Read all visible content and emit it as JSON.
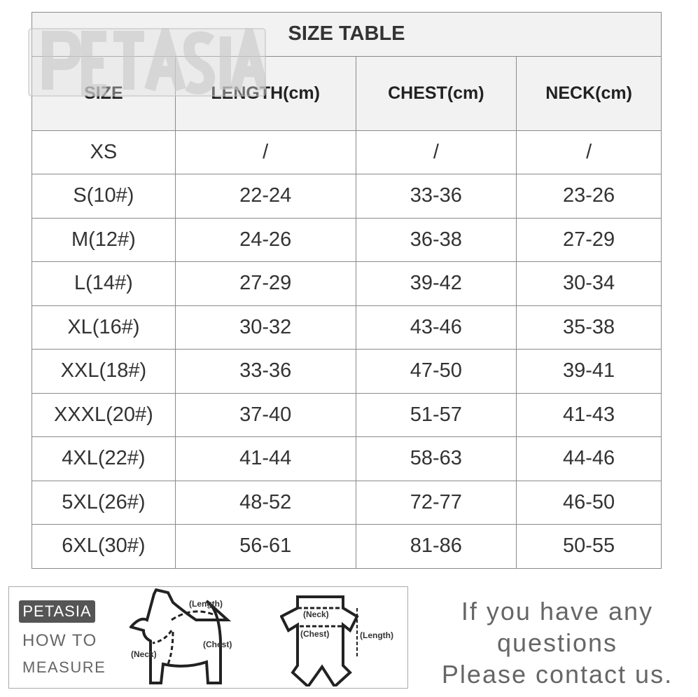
{
  "watermark": "PETASIA",
  "table": {
    "title": "SIZE TABLE",
    "headers": [
      "SIZE",
      "LENGTH(cm)",
      "CHEST(cm)",
      "NECK(cm)"
    ],
    "rows": [
      [
        "XS",
        "/",
        "/",
        "/"
      ],
      [
        "S(10#)",
        "22-24",
        "33-36",
        "23-26"
      ],
      [
        "M(12#)",
        "24-26",
        "36-38",
        "27-29"
      ],
      [
        "L(14#)",
        "27-29",
        "39-42",
        "30-34"
      ],
      [
        "XL(16#)",
        "30-32",
        "43-46",
        "35-38"
      ],
      [
        "XXL(18#)",
        "33-36",
        "47-50",
        "39-41"
      ],
      [
        "XXXL(20#)",
        "37-40",
        "51-57",
        "41-43"
      ],
      [
        "4XL(22#)",
        "41-44",
        "58-63",
        "44-46"
      ],
      [
        "5XL(26#)",
        "48-52",
        "72-77",
        "46-50"
      ],
      [
        "6XL(30#)",
        "56-61",
        "81-86",
        "50-55"
      ]
    ]
  },
  "measure": {
    "brand": "PETASIA",
    "line1": "HOW TO",
    "line2": "MEASURE",
    "dog_labels": {
      "length": "(Length)",
      "neck": "(Neck)",
      "chest": "(Chest)"
    },
    "garment_labels": {
      "neck": "(Neck)",
      "chest": "(Chest)",
      "length": "(Length)"
    }
  },
  "contact": {
    "line1": "If you have any",
    "line2": "questions",
    "line3": "Please contact us."
  }
}
